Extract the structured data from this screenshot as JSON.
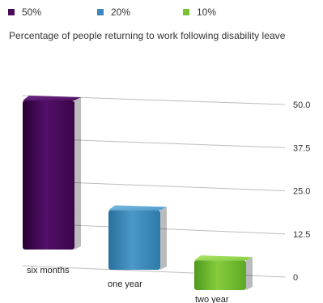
{
  "legend": {
    "items": [
      {
        "label": "50%",
        "color": "#4a0a5c"
      },
      {
        "label": "20%",
        "color": "#3a86b8"
      },
      {
        "label": "10%",
        "color": "#79c233"
      }
    ]
  },
  "chart_data": {
    "type": "bar",
    "title": "Percentage of people returning to work following disability leave",
    "categories": [
      "six months",
      "one year",
      "two year"
    ],
    "values": [
      50,
      20,
      10
    ],
    "colors": [
      "#4a0a5c",
      "#3a86b8",
      "#79c233"
    ],
    "yticks": [
      "0",
      "12.5",
      "25.0",
      "37.5",
      "50.0"
    ],
    "ylim": [
      0,
      50
    ],
    "grid": true,
    "legend_position": "top-left"
  }
}
